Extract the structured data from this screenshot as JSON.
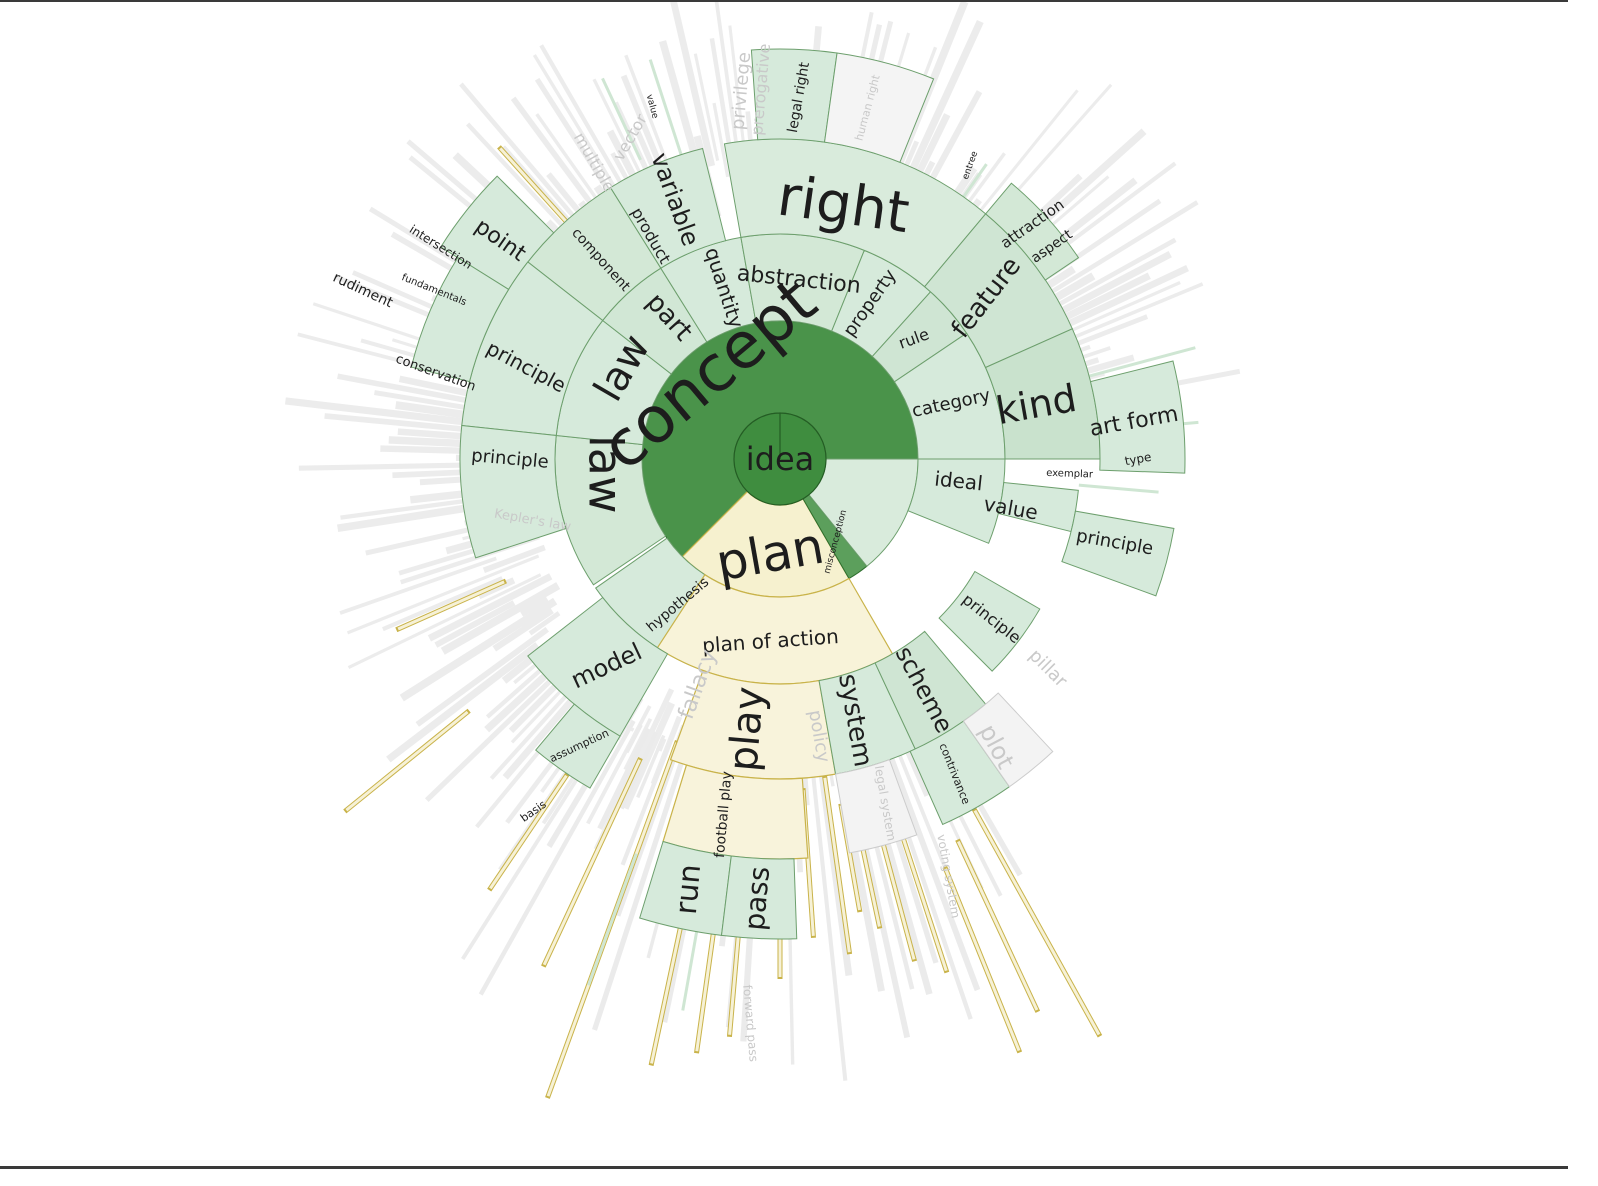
{
  "diagram": {
    "root": "idea",
    "colors": {
      "root": "#3f8d3f",
      "level1_concept": "#4a934a",
      "level1_plan": "#f6f1cf",
      "green_light": "#d6eadb",
      "green_mid": "#c9e2cd",
      "green_stroke": "#6d9f6d",
      "yellow_light": "#f6f1d6",
      "yellow_stroke": "#c9b34a",
      "faint": "#efefef"
    },
    "level1": [
      {
        "label": "concept"
      },
      {
        "label": "plan"
      }
    ],
    "concept_children": [
      {
        "label": "law"
      },
      {
        "label": "law"
      },
      {
        "label": "part"
      },
      {
        "label": "quantity"
      },
      {
        "label": "abstraction"
      },
      {
        "label": "property"
      },
      {
        "label": "rule"
      },
      {
        "label": "category"
      },
      {
        "label": "ideal"
      },
      {
        "label": "value"
      },
      {
        "label": "hypothesis"
      },
      {
        "label": "misconception"
      }
    ],
    "outer_green_labels": [
      {
        "label": "right"
      },
      {
        "label": "feature"
      },
      {
        "label": "kind"
      },
      {
        "label": "art form"
      },
      {
        "label": "type"
      },
      {
        "label": "attraction"
      },
      {
        "label": "aspect"
      },
      {
        "label": "legal right"
      },
      {
        "label": "variable"
      },
      {
        "label": "product"
      },
      {
        "label": "component"
      },
      {
        "label": "point"
      },
      {
        "label": "intersection"
      },
      {
        "label": "rudiment"
      },
      {
        "label": "fundamentals"
      },
      {
        "label": "principle"
      },
      {
        "label": "conservation"
      },
      {
        "label": "principle"
      },
      {
        "label": "model"
      },
      {
        "label": "assumption"
      },
      {
        "label": "basis"
      },
      {
        "label": "principle"
      },
      {
        "label": "principle"
      },
      {
        "label": "exemplar"
      },
      {
        "label": "value"
      },
      {
        "label": "entree"
      }
    ],
    "plan_children": [
      {
        "label": "plan of action"
      },
      {
        "label": "play"
      },
      {
        "label": "football play"
      },
      {
        "label": "run"
      },
      {
        "label": "pass"
      },
      {
        "label": "system"
      },
      {
        "label": "scheme"
      },
      {
        "label": "contrivance"
      }
    ],
    "faint_labels": [
      {
        "label": "privilege"
      },
      {
        "label": "prerogative"
      },
      {
        "label": "human right"
      },
      {
        "label": "vector"
      },
      {
        "label": "multiple"
      },
      {
        "label": "fallacy"
      },
      {
        "label": "pillar"
      },
      {
        "label": "policy"
      },
      {
        "label": "plot"
      },
      {
        "label": "legal system"
      },
      {
        "label": "voting system"
      },
      {
        "label": "forward pass"
      },
      {
        "label": "Kepler's law"
      }
    ]
  }
}
